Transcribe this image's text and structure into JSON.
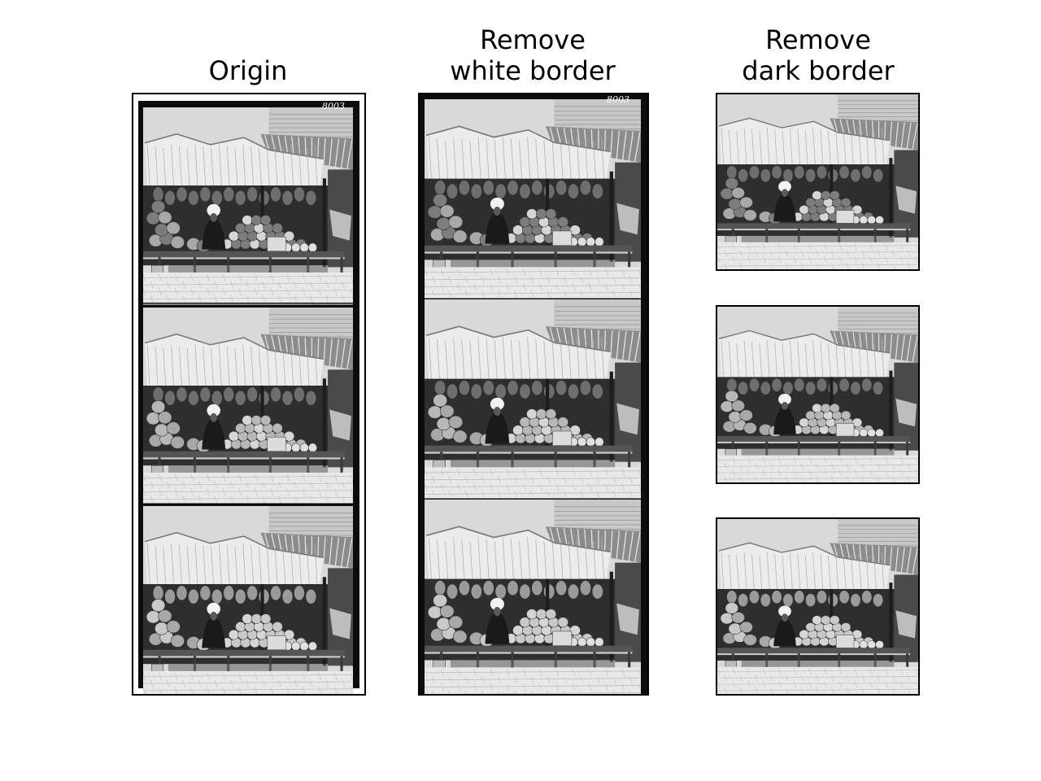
{
  "figure": {
    "panels": [
      {
        "title": "Origin"
      },
      {
        "title": "Remove\nwhite border"
      },
      {
        "title": "Remove\ndark border"
      }
    ],
    "plate_number": "8003",
    "scene": {
      "description_icon": "market-stall-photo",
      "frames_per_strip": 3
    }
  }
}
